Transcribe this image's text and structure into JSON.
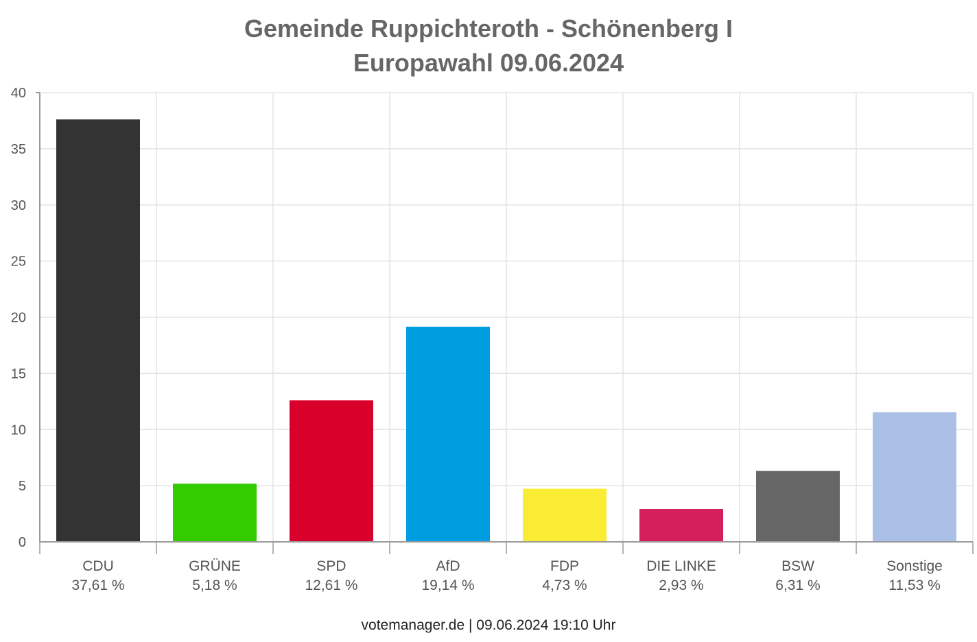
{
  "chart_data": {
    "type": "bar",
    "title": "Gemeinde Ruppichteroth - Schönenberg I",
    "subtitle": "Europawahl 09.06.2024",
    "categories": [
      "CDU",
      "GRÜNE",
      "SPD",
      "AfD",
      "FDP",
      "DIE LINKE",
      "BSW",
      "Sonstige"
    ],
    "values": [
      37.61,
      5.18,
      12.61,
      19.14,
      4.73,
      2.93,
      6.31,
      11.53
    ],
    "value_labels": [
      "37,61 %",
      "5,18 %",
      "12,61 %",
      "19,14 %",
      "4,73 %",
      "2,93 %",
      "6,31 %",
      "11,53 %"
    ],
    "colors": [
      "#333333",
      "#33cc00",
      "#d9002b",
      "#009ee0",
      "#f9ec33",
      "#d3205c",
      "#666666",
      "#aabfe5"
    ],
    "ylim": [
      0,
      40
    ],
    "yticks": [
      0,
      5,
      10,
      15,
      20,
      25,
      30,
      35,
      40
    ],
    "xlabel": "",
    "ylabel": "",
    "grid": true
  },
  "footer": "votemanager.de | 09.06.2024 19:10 Uhr"
}
